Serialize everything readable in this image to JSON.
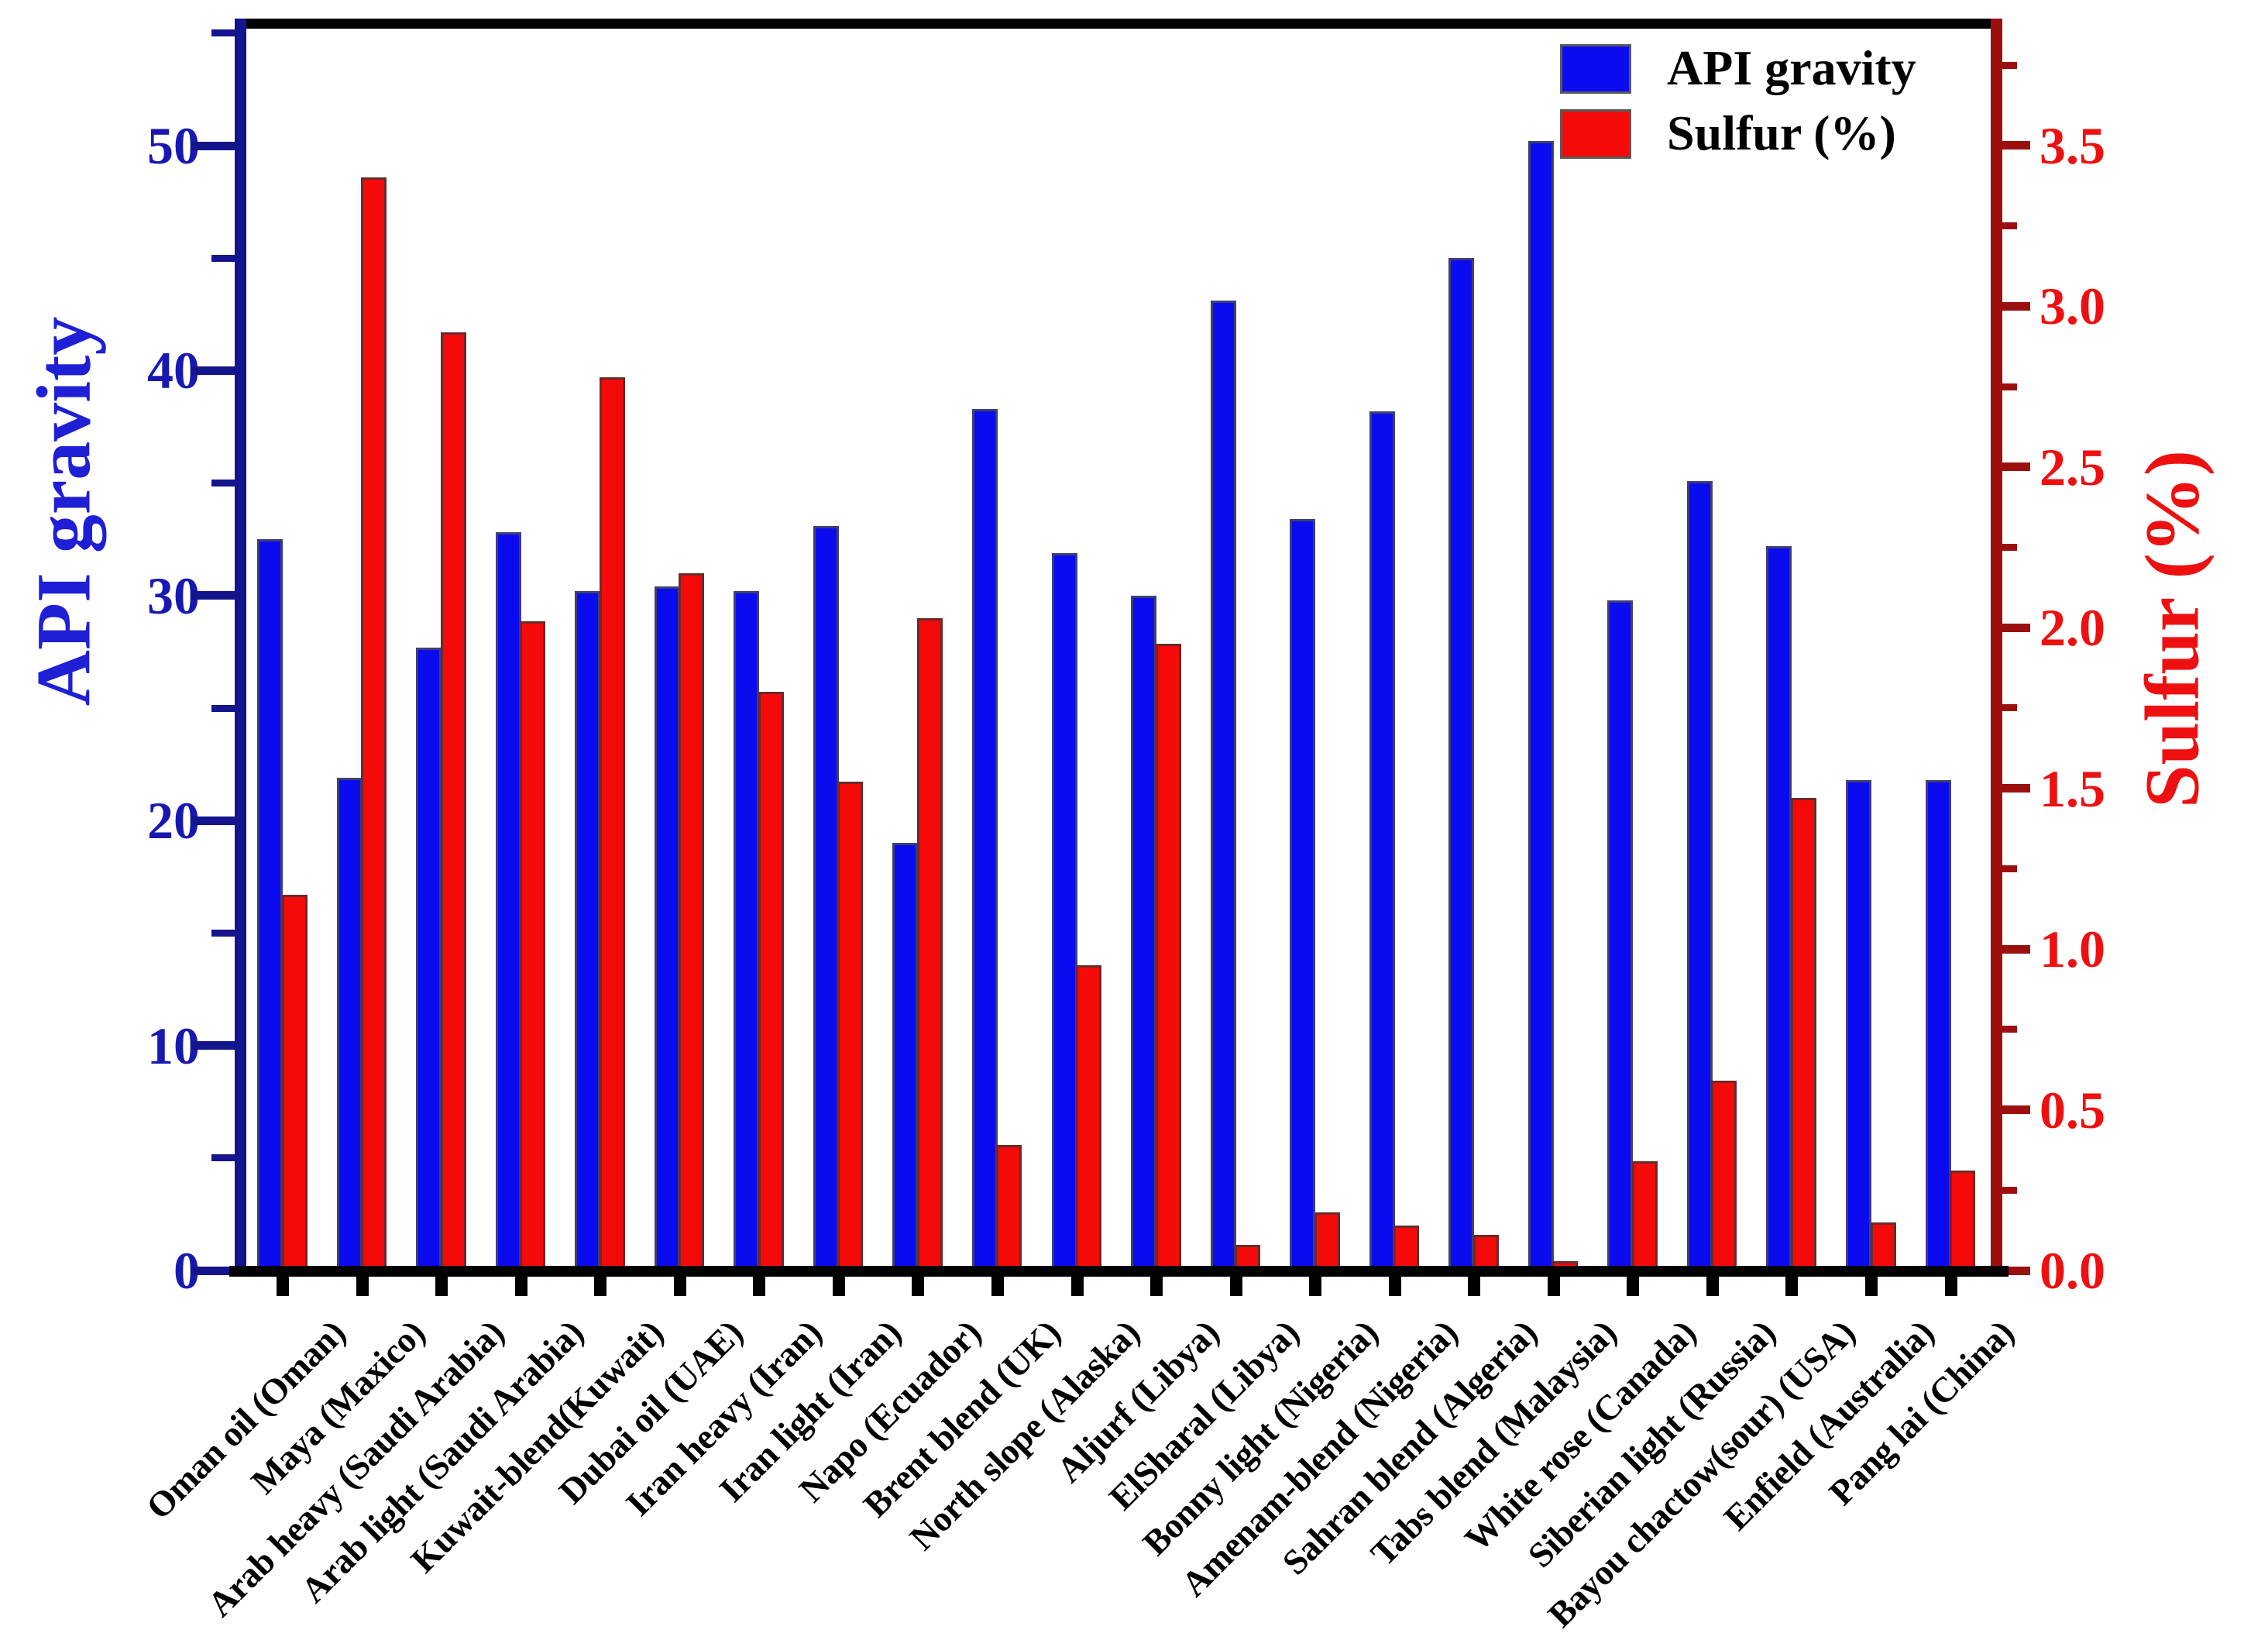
{
  "chart_data": {
    "type": "bar",
    "title": "",
    "categories": [
      "Oman oil (Oman)",
      "Maya (Maxico)",
      "Arab heavy (Saudi Arabia)",
      "Arab light (Saudi Arabia)",
      "Kuwait-blend(Kuwait)",
      "Dubai oil (UAE)",
      "Iran heavy (Iran)",
      "Iran light (Iran)",
      "Napo (Ecuador)",
      "Brent blend (UK)",
      "North slope (Alaska)",
      "Aljurf (Libya)",
      "ElSharal (Libya)",
      "Bonny light (Nigeria)",
      "Amenam-blend (Nigeria)",
      "Sahran blend (Algeria)",
      "Tabs blend (Malaysia)",
      "White rose (Canada)",
      "Siberian light (Russia)",
      "Bayou chactow(sour) (USA)",
      "Enfield (Australia)",
      "Pang lai (China)"
    ],
    "series": [
      {
        "name": "API gravity",
        "axis": "left",
        "color": "#0b0bf0",
        "values": [
          32.5,
          21.9,
          27.7,
          32.8,
          30.2,
          30.4,
          30.2,
          33.1,
          19.0,
          38.3,
          31.9,
          30.0,
          43.1,
          33.4,
          38.2,
          45.0,
          50.2,
          29.8,
          35.1,
          32.2,
          21.8,
          21.8
        ]
      },
      {
        "name": "Sulfur (%)",
        "axis": "right",
        "color": "#f50a0a",
        "values": [
          1.17,
          3.4,
          2.92,
          2.02,
          2.78,
          2.17,
          1.8,
          1.52,
          2.03,
          0.39,
          0.95,
          1.95,
          0.08,
          0.18,
          0.14,
          0.11,
          0.03,
          0.34,
          0.59,
          1.47,
          0.15,
          0.31
        ]
      }
    ],
    "left_axis": {
      "label": "API gravity",
      "tick_labels": [
        "0",
        "10",
        "20",
        "30",
        "40",
        "50"
      ],
      "range": [
        0,
        55.6
      ],
      "minor_step": 5,
      "label_color": "#1818b0",
      "line_color": "#14148c"
    },
    "right_axis": {
      "label": "Sulfur (%)",
      "tick_labels": [
        "0.0",
        "0.5",
        "1.0",
        "1.5",
        "2.0",
        "2.5",
        "3.0",
        "3.5"
      ],
      "range": [
        0,
        3.9
      ],
      "minor_step": 0.25,
      "label_color": "#ee1010",
      "line_color": "#9c0f0f"
    },
    "legend": {
      "position": "top-right",
      "entries": [
        {
          "label": "API gravity",
          "color": "#0b0bf0"
        },
        {
          "label": "Sulfur (%)",
          "color": "#f50a0a"
        }
      ]
    },
    "grid": false
  }
}
